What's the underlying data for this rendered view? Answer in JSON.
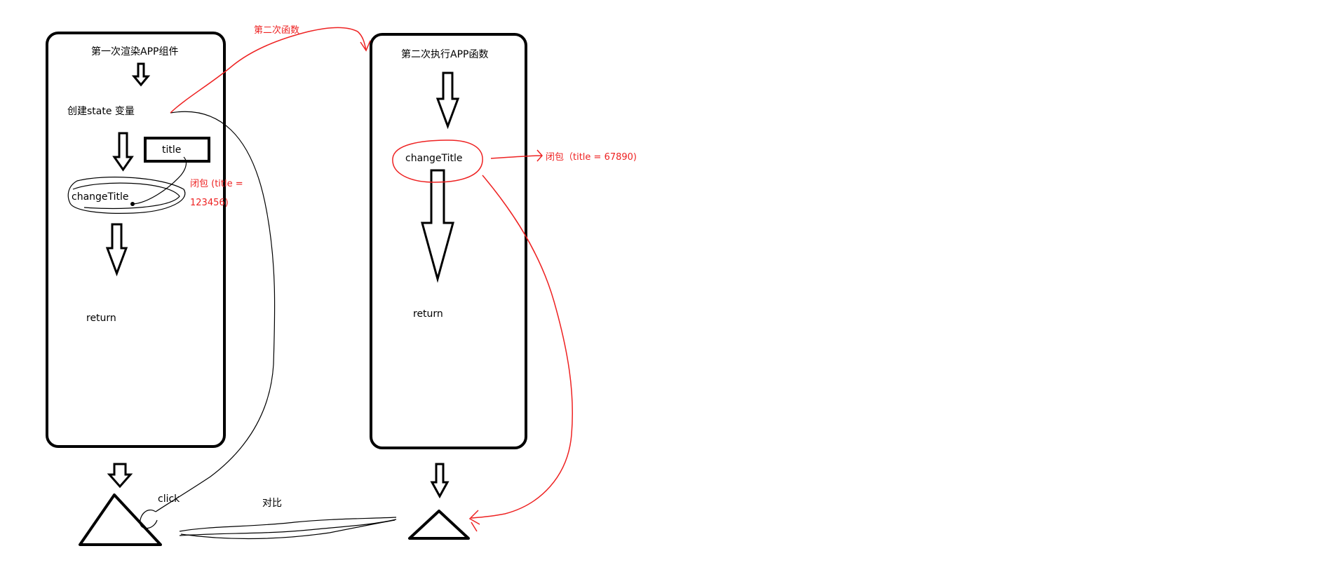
{
  "colors": {
    "ink": "#000000",
    "annotation": "#ee2222",
    "background": "#ffffff"
  },
  "first_render": {
    "title": "第一次渲染APP组件",
    "create_state": "创建state 变量",
    "title_box": "title",
    "change_title": "changeTitle",
    "return": "return"
  },
  "second_render": {
    "title": "第二次执行APP函数",
    "change_title": "changeTitle",
    "return": "return"
  },
  "annotations": {
    "second_call": "第二次函数",
    "closure_1_line1": "闭包   (title =",
    "closure_1_line2": "123456)",
    "closure_2": "闭包（title = 67890)",
    "click": "click",
    "compare": "对比"
  }
}
